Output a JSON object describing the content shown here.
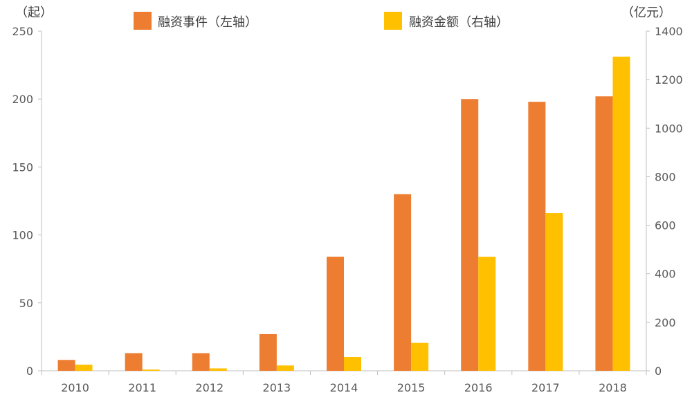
{
  "chart_data": {
    "type": "bar",
    "categories": [
      "2010",
      "2011",
      "2012",
      "2013",
      "2014",
      "2015",
      "2016",
      "2017",
      "2018"
    ],
    "series": [
      {
        "name": "融资事件（左轴）",
        "axis": "left",
        "color": "#ED7D31",
        "values": [
          8,
          13,
          13,
          27,
          84,
          130,
          200,
          198,
          202
        ]
      },
      {
        "name": "融资金额（右轴）",
        "axis": "right",
        "color": "#FFC000",
        "values": [
          25,
          5,
          10,
          22,
          57,
          115,
          470,
          650,
          1295
        ]
      }
    ],
    "y_left": {
      "unit": "（起）",
      "min": 0,
      "max": 250,
      "ticks": [
        "0",
        "50",
        "100",
        "150",
        "200",
        "250"
      ]
    },
    "y_right": {
      "unit": "（亿元）",
      "min": 0,
      "max": 1400,
      "ticks": [
        "0",
        "200",
        "400",
        "600",
        "800",
        "1000",
        "1200",
        "1400"
      ]
    },
    "grid": false,
    "legend_position": "top"
  }
}
